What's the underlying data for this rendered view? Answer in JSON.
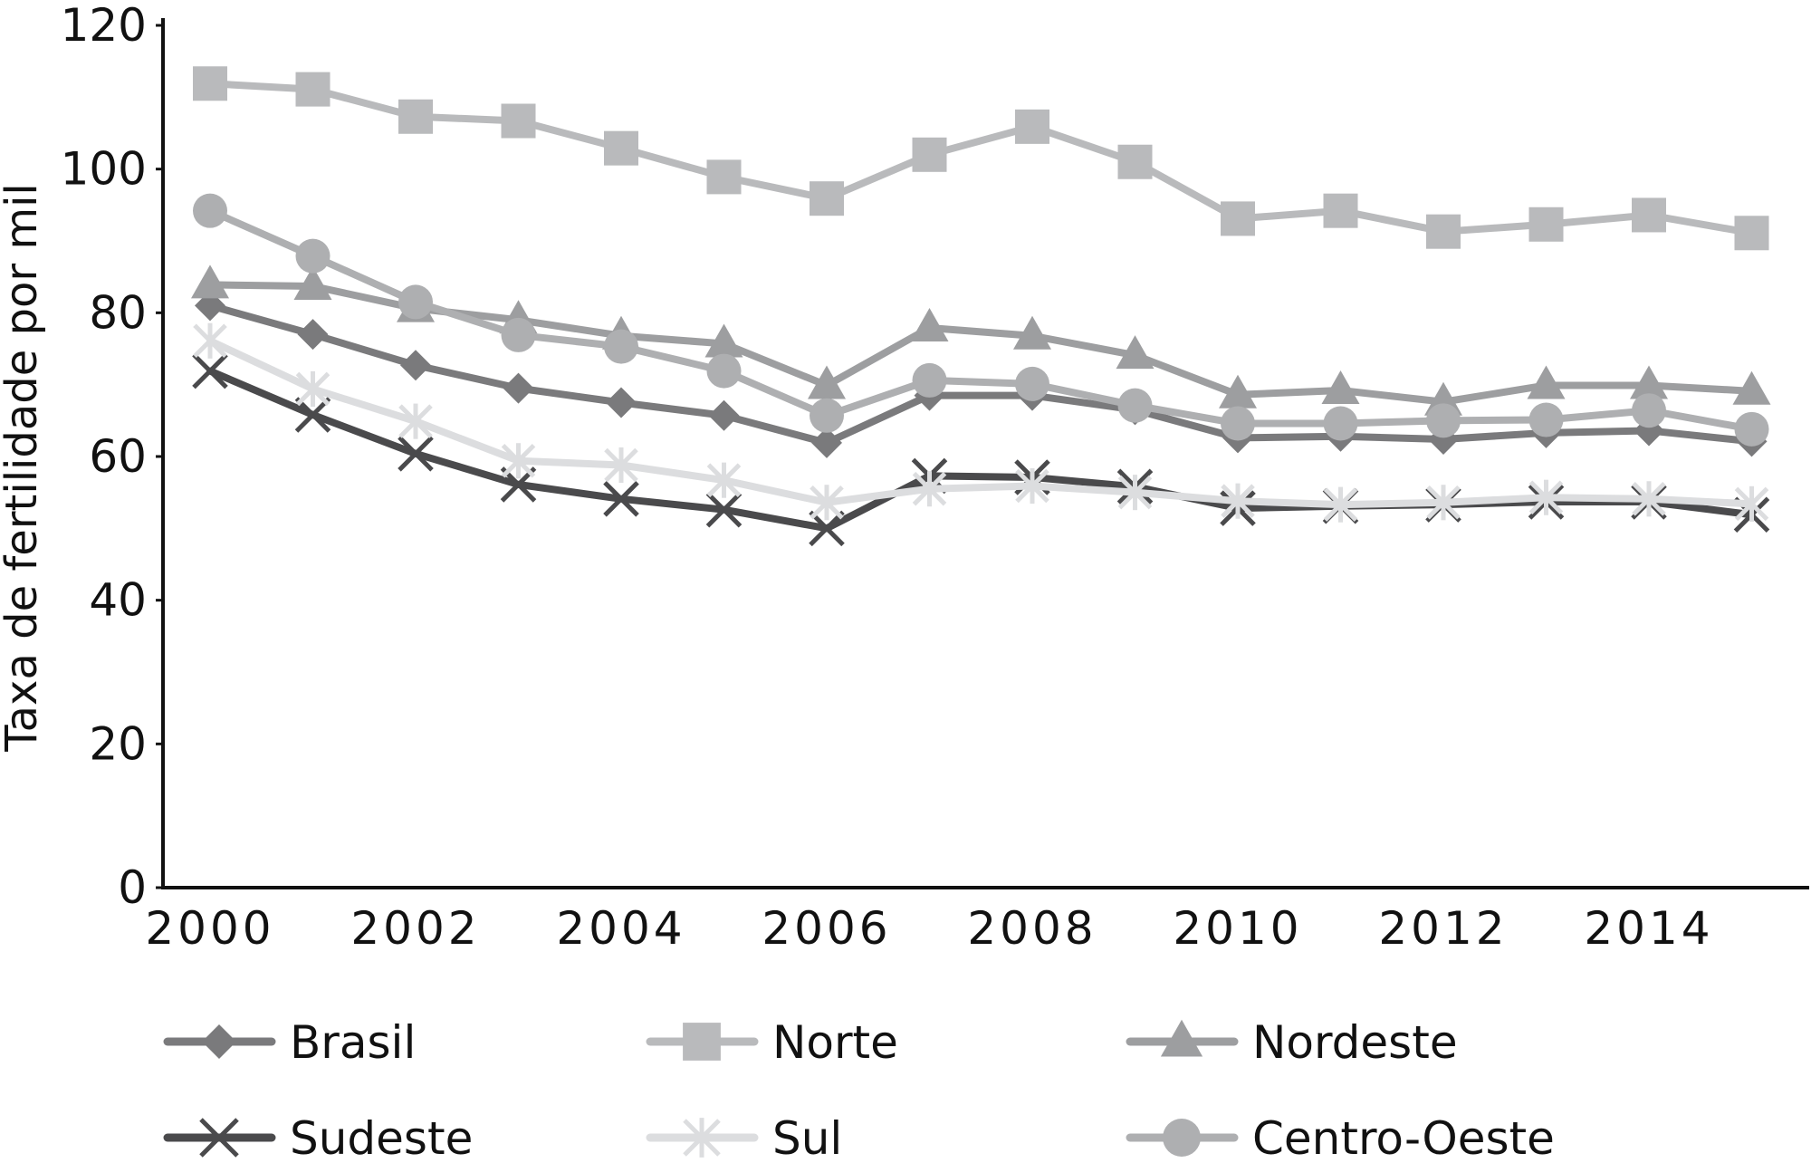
{
  "chart_data": {
    "type": "line",
    "title": "",
    "xlabel": "",
    "ylabel": "Taxa de fertilidade por mil",
    "x": [
      2000,
      2001,
      2002,
      2003,
      2004,
      2005,
      2006,
      2007,
      2008,
      2009,
      2010,
      2011,
      2012,
      2013,
      2014,
      2015
    ],
    "xlim": [
      2000,
      2016
    ],
    "ylim": [
      0,
      120
    ],
    "x_ticks": [
      2000,
      2002,
      2004,
      2006,
      2008,
      2010,
      2012,
      2014
    ],
    "x_tick_labels": [
      "2000",
      "2002",
      "2004",
      "2006",
      "2008",
      "2010",
      "2012",
      "2014"
    ],
    "y_ticks": [
      0,
      20,
      40,
      60,
      80,
      100,
      120
    ],
    "y_tick_labels": [
      "0",
      "20",
      "40",
      "60",
      "80",
      "100",
      "120"
    ],
    "grid": false,
    "legend_position": "bottom",
    "series": [
      {
        "name": "Brasil",
        "color": "#7a7a7c",
        "marker": "diamond",
        "values": [
          81.0,
          77.0,
          72.7,
          69.5,
          67.5,
          65.7,
          61.9,
          68.5,
          68.5,
          66.5,
          62.6,
          62.8,
          62.4,
          63.3,
          63.6,
          62.1
        ]
      },
      {
        "name": "Norte",
        "color": "#b9babc",
        "marker": "square",
        "values": [
          111.9,
          111.1,
          107.3,
          106.7,
          102.9,
          98.9,
          95.9,
          102.0,
          105.9,
          101.0,
          93.1,
          94.2,
          91.3,
          92.3,
          93.6,
          91.1
        ]
      },
      {
        "name": "Nordeste",
        "color": "#9d9ea0",
        "marker": "triangle",
        "values": [
          83.9,
          83.7,
          80.6,
          79.0,
          76.8,
          75.7,
          69.9,
          77.9,
          76.8,
          74.1,
          68.6,
          69.2,
          67.6,
          69.9,
          69.9,
          69.1
        ]
      },
      {
        "name": "Sudeste",
        "color": "#4a4a4c",
        "marker": "x",
        "values": [
          71.9,
          65.8,
          60.4,
          56.1,
          54.1,
          52.6,
          50.0,
          57.3,
          57.1,
          55.8,
          52.8,
          53.1,
          53.3,
          53.7,
          53.7,
          51.9
        ]
      },
      {
        "name": "Sul",
        "color": "#dcdddf",
        "marker": "asterisk",
        "values": [
          76.1,
          69.4,
          64.9,
          59.4,
          58.8,
          56.7,
          53.6,
          55.5,
          55.9,
          55.0,
          53.8,
          53.3,
          53.6,
          54.3,
          54.1,
          53.4
        ]
      },
      {
        "name": "Centro-Oeste",
        "color": "#aeafb1",
        "marker": "circle",
        "values": [
          94.2,
          87.9,
          81.5,
          76.9,
          75.3,
          71.9,
          65.7,
          70.6,
          70.1,
          67.1,
          64.6,
          64.6,
          65.0,
          65.1,
          66.4,
          63.8
        ]
      }
    ]
  }
}
